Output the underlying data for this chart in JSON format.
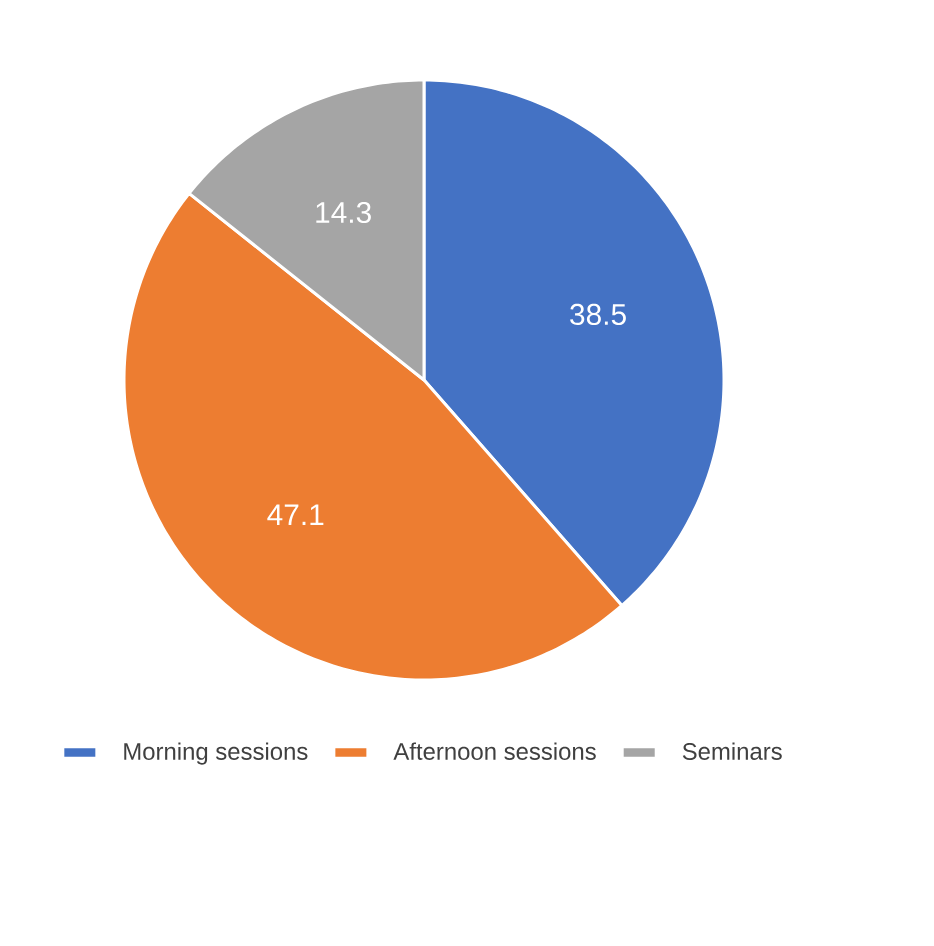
{
  "chart_data": {
    "type": "pie",
    "categories": [
      "Morning sessions",
      "Afternoon sessions",
      "Seminars"
    ],
    "values": [
      38.5,
      47.1,
      14.3
    ],
    "colors": [
      "#4472c4",
      "#ed7d31",
      "#a5a5a5"
    ],
    "data_labels": true,
    "legend": "bottom"
  }
}
